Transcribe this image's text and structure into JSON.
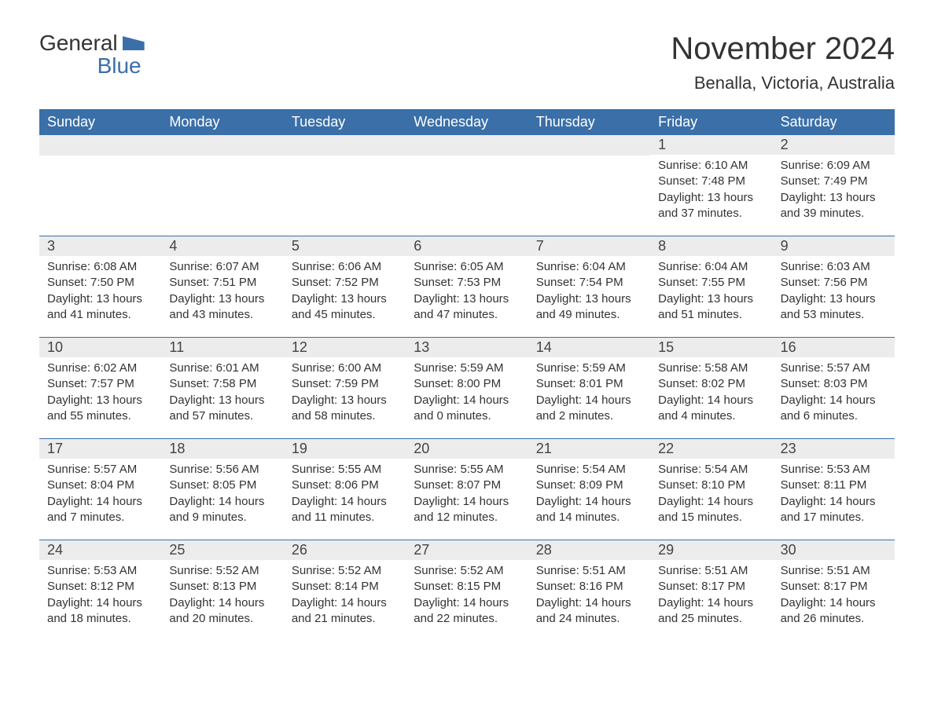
{
  "logo": {
    "text_general": "General",
    "text_blue": "Blue"
  },
  "title": "November 2024",
  "location": "Benalla, Victoria, Australia",
  "colors": {
    "brand_blue": "#3a6fa8",
    "header_bg": "#3a6fa8",
    "header_text": "#ffffff",
    "daynum_bg": "#ececec",
    "text": "#333333",
    "background": "#ffffff"
  },
  "day_names": [
    "Sunday",
    "Monday",
    "Tuesday",
    "Wednesday",
    "Thursday",
    "Friday",
    "Saturday"
  ],
  "label_sunrise": "Sunrise: ",
  "label_sunset": "Sunset: ",
  "label_daylight": "Daylight: ",
  "weeks": [
    [
      {
        "empty": true
      },
      {
        "empty": true
      },
      {
        "empty": true
      },
      {
        "empty": true
      },
      {
        "empty": true
      },
      {
        "num": "1",
        "sunrise": "6:10 AM",
        "sunset": "7:48 PM",
        "daylight": "13 hours and 37 minutes."
      },
      {
        "num": "2",
        "sunrise": "6:09 AM",
        "sunset": "7:49 PM",
        "daylight": "13 hours and 39 minutes."
      }
    ],
    [
      {
        "num": "3",
        "sunrise": "6:08 AM",
        "sunset": "7:50 PM",
        "daylight": "13 hours and 41 minutes."
      },
      {
        "num": "4",
        "sunrise": "6:07 AM",
        "sunset": "7:51 PM",
        "daylight": "13 hours and 43 minutes."
      },
      {
        "num": "5",
        "sunrise": "6:06 AM",
        "sunset": "7:52 PM",
        "daylight": "13 hours and 45 minutes."
      },
      {
        "num": "6",
        "sunrise": "6:05 AM",
        "sunset": "7:53 PM",
        "daylight": "13 hours and 47 minutes."
      },
      {
        "num": "7",
        "sunrise": "6:04 AM",
        "sunset": "7:54 PM",
        "daylight": "13 hours and 49 minutes."
      },
      {
        "num": "8",
        "sunrise": "6:04 AM",
        "sunset": "7:55 PM",
        "daylight": "13 hours and 51 minutes."
      },
      {
        "num": "9",
        "sunrise": "6:03 AM",
        "sunset": "7:56 PM",
        "daylight": "13 hours and 53 minutes."
      }
    ],
    [
      {
        "num": "10",
        "sunrise": "6:02 AM",
        "sunset": "7:57 PM",
        "daylight": "13 hours and 55 minutes."
      },
      {
        "num": "11",
        "sunrise": "6:01 AM",
        "sunset": "7:58 PM",
        "daylight": "13 hours and 57 minutes."
      },
      {
        "num": "12",
        "sunrise": "6:00 AM",
        "sunset": "7:59 PM",
        "daylight": "13 hours and 58 minutes."
      },
      {
        "num": "13",
        "sunrise": "5:59 AM",
        "sunset": "8:00 PM",
        "daylight": "14 hours and 0 minutes."
      },
      {
        "num": "14",
        "sunrise": "5:59 AM",
        "sunset": "8:01 PM",
        "daylight": "14 hours and 2 minutes."
      },
      {
        "num": "15",
        "sunrise": "5:58 AM",
        "sunset": "8:02 PM",
        "daylight": "14 hours and 4 minutes."
      },
      {
        "num": "16",
        "sunrise": "5:57 AM",
        "sunset": "8:03 PM",
        "daylight": "14 hours and 6 minutes."
      }
    ],
    [
      {
        "num": "17",
        "sunrise": "5:57 AM",
        "sunset": "8:04 PM",
        "daylight": "14 hours and 7 minutes."
      },
      {
        "num": "18",
        "sunrise": "5:56 AM",
        "sunset": "8:05 PM",
        "daylight": "14 hours and 9 minutes."
      },
      {
        "num": "19",
        "sunrise": "5:55 AM",
        "sunset": "8:06 PM",
        "daylight": "14 hours and 11 minutes."
      },
      {
        "num": "20",
        "sunrise": "5:55 AM",
        "sunset": "8:07 PM",
        "daylight": "14 hours and 12 minutes."
      },
      {
        "num": "21",
        "sunrise": "5:54 AM",
        "sunset": "8:09 PM",
        "daylight": "14 hours and 14 minutes."
      },
      {
        "num": "22",
        "sunrise": "5:54 AM",
        "sunset": "8:10 PM",
        "daylight": "14 hours and 15 minutes."
      },
      {
        "num": "23",
        "sunrise": "5:53 AM",
        "sunset": "8:11 PM",
        "daylight": "14 hours and 17 minutes."
      }
    ],
    [
      {
        "num": "24",
        "sunrise": "5:53 AM",
        "sunset": "8:12 PM",
        "daylight": "14 hours and 18 minutes."
      },
      {
        "num": "25",
        "sunrise": "5:52 AM",
        "sunset": "8:13 PM",
        "daylight": "14 hours and 20 minutes."
      },
      {
        "num": "26",
        "sunrise": "5:52 AM",
        "sunset": "8:14 PM",
        "daylight": "14 hours and 21 minutes."
      },
      {
        "num": "27",
        "sunrise": "5:52 AM",
        "sunset": "8:15 PM",
        "daylight": "14 hours and 22 minutes."
      },
      {
        "num": "28",
        "sunrise": "5:51 AM",
        "sunset": "8:16 PM",
        "daylight": "14 hours and 24 minutes."
      },
      {
        "num": "29",
        "sunrise": "5:51 AM",
        "sunset": "8:17 PM",
        "daylight": "14 hours and 25 minutes."
      },
      {
        "num": "30",
        "sunrise": "5:51 AM",
        "sunset": "8:17 PM",
        "daylight": "14 hours and 26 minutes."
      }
    ]
  ]
}
